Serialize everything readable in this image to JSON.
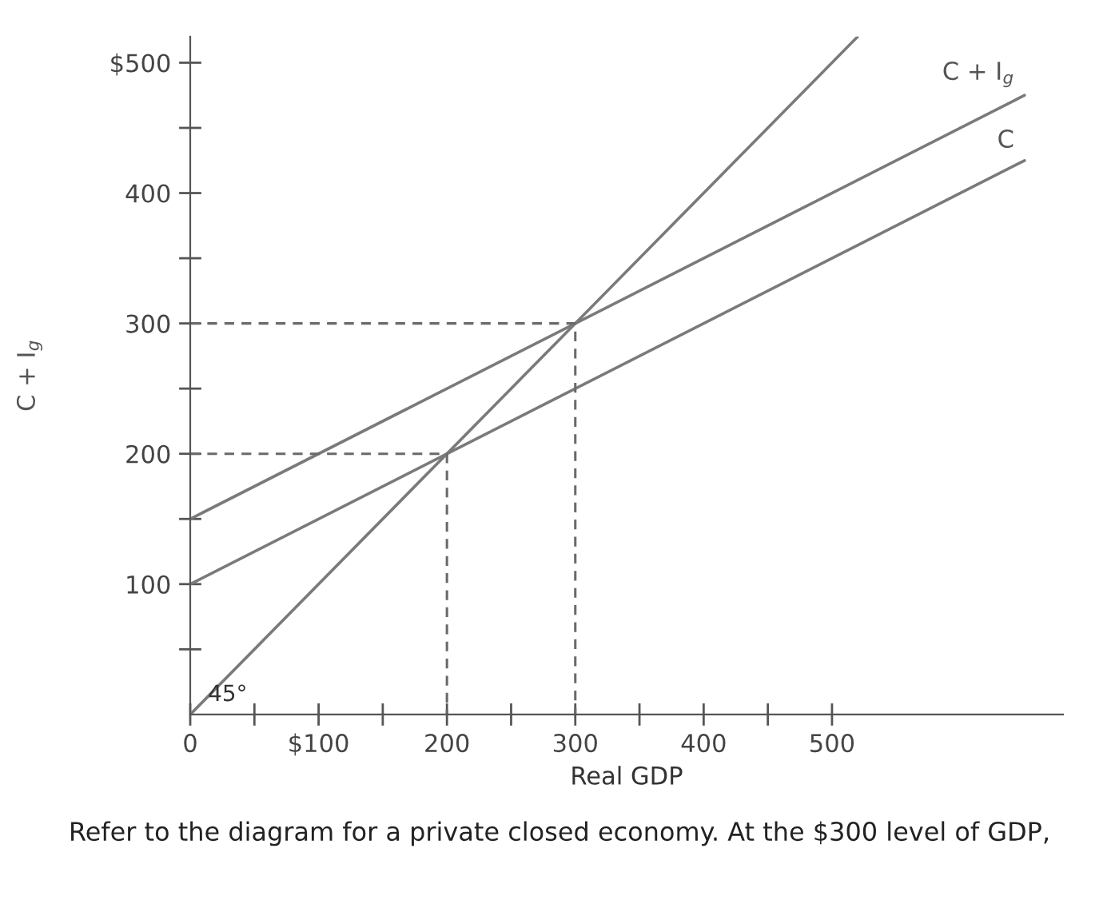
{
  "chart_data": {
    "type": "line",
    "xlabel": "Real GDP",
    "ylabel": "C + I$_{g}$",
    "annotations": [
      {
        "text": "45°",
        "x": 0,
        "y": 0
      },
      "Refer to the diagram for a private closed economy. At the $300 level of GDP,"
    ],
    "series": [
      {
        "name": "C + I$_{g}$",
        "color": "#7a7a7a",
        "x": [
          0,
          650
        ],
        "values": [
          150,
          475
        ],
        "line_style": "solid"
      },
      {
        "name": "C",
        "color": "#7a7a7a",
        "x": [
          0,
          650
        ],
        "values": [
          100,
          425
        ],
        "line_style": "solid"
      },
      {
        "color": "#7a7a7a",
        "x": [
          0,
          520
        ],
        "values": [
          0,
          520
        ],
        "line_style": "solid"
      },
      {
        "color": "#6a6a6a",
        "x": [
          0,
          200,
          200
        ],
        "values": [
          200,
          200,
          0
        ],
        "line_style": "dashed"
      },
      {
        "color": "#6a6a6a",
        "x": [
          0,
          300,
          300
        ],
        "values": [
          300,
          300,
          0
        ],
        "line_style": "dashed"
      }
    ],
    "xlim": [
      0,
      680
    ],
    "ylim": [
      0,
      520
    ],
    "xticks": [
      {
        "value": 0,
        "label": "0"
      },
      {
        "value": 50,
        "label": null
      },
      {
        "value": 100,
        "label": "$100"
      },
      {
        "value": 150,
        "label": null
      },
      200,
      {
        "value": 250,
        "label": null
      },
      300,
      {
        "value": 350,
        "label": null
      },
      400,
      {
        "value": 450,
        "label": null
      },
      500
    ],
    "yticks": [
      {
        "value": 50,
        "label": null
      },
      100,
      {
        "value": 150,
        "label": null
      },
      200,
      {
        "value": 250,
        "label": null
      },
      300,
      {
        "value": 350,
        "label": null
      },
      400,
      {
        "value": 450,
        "label": null
      },
      {
        "value": 500,
        "label": "$500"
      }
    ],
    "grid": false,
    "legend": false,
    "marker": "none"
  }
}
